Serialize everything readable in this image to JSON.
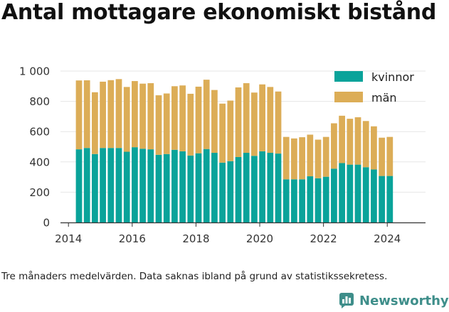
{
  "title": "Antal mottagare ekonomiskt bistånd",
  "note": "Tre månaders medelvärden. Data saknas ibland på grund av statistikssekretess.",
  "brand": {
    "name": "Newsworthy",
    "icon": "newsworthy-logo-icon"
  },
  "colors": {
    "kvinnor": "#0aa39a",
    "man": "#dcad57",
    "grid": "#e6e6e6",
    "axis": "#333333"
  },
  "chart_data": {
    "type": "bar",
    "stacked": true,
    "title": "Antal mottagare ekonomiskt bistånd",
    "xlabel": "",
    "ylabel": "",
    "xlim": [
      2013.75,
      2025.2
    ],
    "ylim": [
      0,
      1000
    ],
    "yticks": [
      0,
      200,
      400,
      600,
      800,
      1000
    ],
    "ytick_labels": [
      "0",
      "200",
      "400",
      "600",
      "800",
      "1 000"
    ],
    "xticks": [
      2014,
      2016,
      2018,
      2020,
      2022,
      2024
    ],
    "xtick_labels": [
      "2014",
      "2016",
      "2018",
      "2020",
      "2022",
      "2024"
    ],
    "grid": "horizontal",
    "legend_position": "top-right",
    "x": [
      2014.33,
      2014.58,
      2014.83,
      2015.08,
      2015.33,
      2015.58,
      2015.83,
      2016.08,
      2016.33,
      2016.58,
      2016.83,
      2017.08,
      2017.33,
      2017.58,
      2017.83,
      2018.08,
      2018.33,
      2018.58,
      2018.83,
      2019.08,
      2019.33,
      2019.58,
      2019.83,
      2020.08,
      2020.33,
      2020.58,
      2020.83,
      2021.08,
      2021.33,
      2021.58,
      2021.83,
      2022.08,
      2022.33,
      2022.58,
      2022.83,
      2023.08,
      2023.33,
      2023.58,
      2023.83,
      2024.08
    ],
    "series": [
      {
        "name": "kvinnor",
        "values": [
          483,
          492,
          452,
          492,
          492,
          492,
          467,
          497,
          487,
          483,
          447,
          452,
          480,
          470,
          442,
          457,
          485,
          460,
          395,
          405,
          432,
          460,
          440,
          470,
          460,
          455,
          285,
          285,
          285,
          305,
          292,
          302,
          355,
          392,
          382,
          382,
          365,
          350,
          307,
          307
        ]
      },
      {
        "name": "män",
        "values": [
          455,
          447,
          408,
          438,
          448,
          455,
          428,
          437,
          430,
          437,
          393,
          400,
          420,
          435,
          408,
          440,
          458,
          415,
          390,
          400,
          460,
          460,
          418,
          442,
          435,
          410,
          280,
          270,
          278,
          275,
          255,
          263,
          300,
          313,
          303,
          313,
          305,
          285,
          253,
          258
        ]
      }
    ]
  }
}
